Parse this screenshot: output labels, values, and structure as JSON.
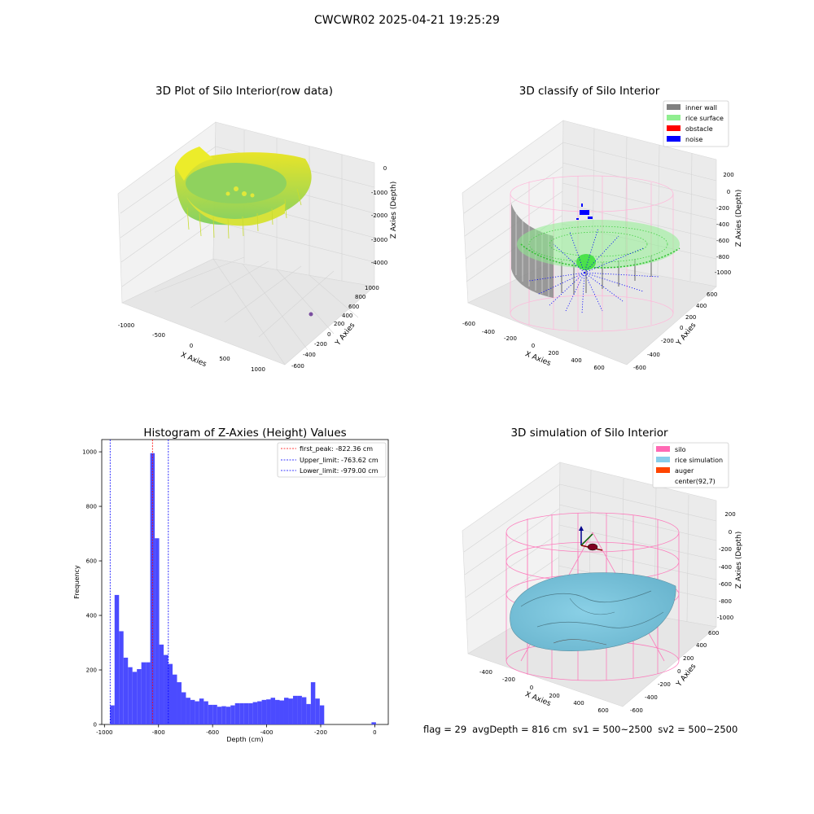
{
  "figure": {
    "suptitle": "CWCWR02 2025-04-21 19:25:29"
  },
  "chart_data": [
    {
      "type": "scatter",
      "title": "3D Plot of Silo Interior(row data)",
      "xlabel": "X Axies",
      "ylabel": "Y Axies",
      "zlabel": "Z Axies (Depth)",
      "xticks": [
        -1000,
        -500,
        0,
        500,
        1000
      ],
      "yticks": [
        -600,
        -400,
        -200,
        0,
        200,
        400,
        600,
        800,
        1000
      ],
      "zticks": [
        -4000,
        -3000,
        -2000,
        -1000,
        0
      ],
      "colormap": [
        "#7ccf5a",
        "#f4e81c"
      ],
      "grid": true
    },
    {
      "type": "scatter",
      "title": "3D classify of Silo Interior",
      "xlabel": "X Axies",
      "ylabel": "Y Axies",
      "zlabel": "Z Axies (Depth)",
      "xticks": [
        -600,
        -400,
        -200,
        0,
        200,
        400,
        600
      ],
      "yticks": [
        -600,
        -400,
        -200,
        0,
        200,
        400,
        600
      ],
      "zticks": [
        -1000,
        -800,
        -600,
        -400,
        -200,
        0,
        200
      ],
      "legend_position": "top-right",
      "legend": [
        {
          "label": "inner wall",
          "color": "#808080"
        },
        {
          "label": "rice surface",
          "color": "#90ee90"
        },
        {
          "label": "obstacle",
          "color": "#ff0000"
        },
        {
          "label": "noise",
          "color": "#0000ff"
        }
      ],
      "silo_wire_color": "#ffb6d9",
      "grid": true
    },
    {
      "type": "bar",
      "title": "Histogram of Z-Axies (Height) Values",
      "xlabel": "Depth (cm)",
      "ylabel": "Frequency",
      "xlim": [
        -1010,
        50
      ],
      "ylim": [
        0,
        1045
      ],
      "xticks": [
        -1000,
        -800,
        -600,
        -400,
        -200,
        0
      ],
      "yticks": [
        0,
        200,
        400,
        600,
        800,
        1000
      ],
      "bin_width": 16.5,
      "bar_color": "#4b4bff",
      "bins": [
        {
          "x": -979,
          "value": 70
        },
        {
          "x": -962.5,
          "value": 475
        },
        {
          "x": -946,
          "value": 342
        },
        {
          "x": -929.5,
          "value": 245
        },
        {
          "x": -913,
          "value": 210
        },
        {
          "x": -896.5,
          "value": 193
        },
        {
          "x": -880,
          "value": 203
        },
        {
          "x": -863.5,
          "value": 228
        },
        {
          "x": -847,
          "value": 228
        },
        {
          "x": -830.5,
          "value": 995
        },
        {
          "x": -814,
          "value": 683
        },
        {
          "x": -797.5,
          "value": 293
        },
        {
          "x": -781,
          "value": 255
        },
        {
          "x": -764.5,
          "value": 222
        },
        {
          "x": -748,
          "value": 183
        },
        {
          "x": -731.5,
          "value": 155
        },
        {
          "x": -715,
          "value": 118
        },
        {
          "x": -698.5,
          "value": 98
        },
        {
          "x": -682,
          "value": 90
        },
        {
          "x": -665.5,
          "value": 85
        },
        {
          "x": -649,
          "value": 95
        },
        {
          "x": -632.5,
          "value": 85
        },
        {
          "x": -616,
          "value": 72
        },
        {
          "x": -599.5,
          "value": 72
        },
        {
          "x": -583,
          "value": 65
        },
        {
          "x": -566.5,
          "value": 67
        },
        {
          "x": -550,
          "value": 65
        },
        {
          "x": -533.5,
          "value": 70
        },
        {
          "x": -517,
          "value": 78
        },
        {
          "x": -500.5,
          "value": 78
        },
        {
          "x": -484,
          "value": 78
        },
        {
          "x": -467.5,
          "value": 78
        },
        {
          "x": -451,
          "value": 82
        },
        {
          "x": -434.5,
          "value": 85
        },
        {
          "x": -418,
          "value": 90
        },
        {
          "x": -401.5,
          "value": 92
        },
        {
          "x": -385,
          "value": 98
        },
        {
          "x": -368.5,
          "value": 90
        },
        {
          "x": -352,
          "value": 88
        },
        {
          "x": -335.5,
          "value": 98
        },
        {
          "x": -319,
          "value": 95
        },
        {
          "x": -302.5,
          "value": 105
        },
        {
          "x": -286,
          "value": 105
        },
        {
          "x": -269.5,
          "value": 100
        },
        {
          "x": -253,
          "value": 75
        },
        {
          "x": -236.5,
          "value": 155
        },
        {
          "x": -220,
          "value": 95
        },
        {
          "x": -203.5,
          "value": 70
        },
        {
          "x": -12,
          "value": 8
        }
      ],
      "lines": [
        {
          "x": -822.36,
          "color": "#ff0000"
        },
        {
          "x": -763.62,
          "color": "#0000ff"
        },
        {
          "x": -979.0,
          "color": "#0000ff"
        }
      ],
      "legend_position": "top-right",
      "legend": [
        {
          "label": "first_peak: -822.36 cm",
          "color": "#ff0000"
        },
        {
          "label": "Upper_limit: -763.62 cm",
          "color": "#0000ff"
        },
        {
          "label": "Lower_limit: -979.00 cm",
          "color": "#0000ff"
        }
      ]
    },
    {
      "type": "other",
      "title": "3D simulation of Silo Interior",
      "xlabel": "X Axies",
      "ylabel": "Y Axies",
      "zlabel": "Z Axies (Depth)",
      "xticks": [
        -400,
        -200,
        0,
        200,
        400,
        600
      ],
      "yticks": [
        -600,
        -400,
        -200,
        0,
        200,
        400,
        600
      ],
      "zticks": [
        -1000,
        -800,
        -600,
        -400,
        -200,
        0,
        200
      ],
      "legend_position": "top-right",
      "legend": [
        {
          "label": "silo",
          "color": "#ff69b4"
        },
        {
          "label": "rice simulation",
          "color": "#87ceeb"
        },
        {
          "label": "auger",
          "color": "#ff4500"
        },
        {
          "label": "center(92,7)",
          "color": ""
        }
      ],
      "grid": true
    }
  ],
  "footer": {
    "flag": "flag = 29",
    "avg_depth": "avgDepth = 816 cm",
    "sv1": "sv1 = 500~2500",
    "sv2": "sv2 = 500~2500"
  }
}
